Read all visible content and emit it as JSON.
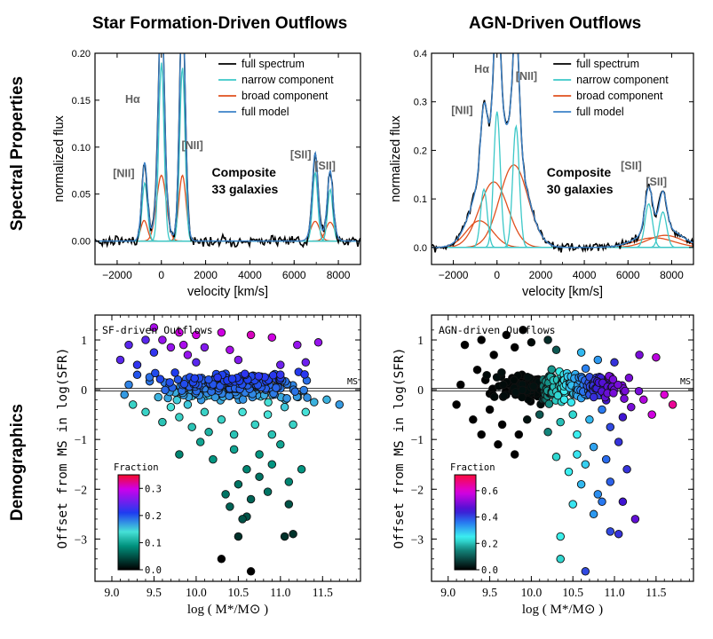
{
  "columns": {
    "left_title": "Star Formation-Driven  Outflows",
    "right_title": "AGN-Driven  Outflows"
  },
  "rows": {
    "top_label": "Spectral Properties",
    "bottom_label": "Demographics"
  },
  "colors": {
    "full_spectrum": "#000000",
    "narrow_component": "#3cc8c8",
    "broad_component": "#e0501e",
    "full_model": "#3c82c8",
    "line_label": "#606060"
  },
  "chart_data": [
    {
      "id": "sf_spectrum",
      "type": "line",
      "xlabel": "velocity [km/s]",
      "ylabel": "normalized flux",
      "xlim": [
        -3000,
        9000
      ],
      "ylim": [
        -0.025,
        0.2
      ],
      "xticks": [
        -2000,
        0,
        2000,
        4000,
        6000,
        8000
      ],
      "yticks": [
        0.0,
        0.05,
        0.1,
        0.15,
        0.2
      ],
      "ytick_labels": [
        "0.00",
        "0.05",
        "0.10",
        "0.15",
        "0.20"
      ],
      "legend": [
        "full spectrum",
        "narrow component",
        "broad component",
        "full model"
      ],
      "legend_position": "top-right",
      "annotation": [
        "Composite",
        "33 galaxies"
      ],
      "line_labels": [
        {
          "text": "Hα",
          "x": -1300,
          "y": 0.147
        },
        {
          "text": "[NII]",
          "x": -1700,
          "y": 0.068
        },
        {
          "text": "[NII]",
          "x": 1400,
          "y": 0.098
        },
        {
          "text": "[SII]",
          "x": 6300,
          "y": 0.088
        },
        {
          "text": "[SII]",
          "x": 7400,
          "y": 0.076
        }
      ],
      "narrow": [
        {
          "mu": -750,
          "amp": 0.062,
          "sigma": 120
        },
        {
          "mu": 0,
          "amp": 0.19,
          "sigma": 120
        },
        {
          "mu": 950,
          "amp": 0.185,
          "sigma": 120
        },
        {
          "mu": 6950,
          "amp": 0.073,
          "sigma": 115
        },
        {
          "mu": 7630,
          "amp": 0.055,
          "sigma": 115
        }
      ],
      "broad": [
        {
          "mu": -780,
          "amp": 0.022,
          "sigma": 150
        },
        {
          "mu": 0,
          "amp": 0.07,
          "sigma": 220
        },
        {
          "mu": 950,
          "amp": 0.07,
          "sigma": 160
        },
        {
          "mu": 6950,
          "amp": 0.021,
          "sigma": 200
        },
        {
          "mu": 7630,
          "amp": 0.02,
          "sigma": 200
        }
      ],
      "noise": 0.004
    },
    {
      "id": "agn_spectrum",
      "type": "line",
      "xlabel": "velocity [km/s]",
      "ylabel": "normalized flux",
      "xlim": [
        -3000,
        9000
      ],
      "ylim": [
        -0.035,
        0.4
      ],
      "xticks": [
        -2000,
        0,
        2000,
        4000,
        6000,
        8000
      ],
      "yticks": [
        0.0,
        0.1,
        0.2,
        0.3,
        0.4
      ],
      "ytick_labels": [
        "0.0",
        "0.1",
        "0.2",
        "0.3",
        "0.4"
      ],
      "legend": [
        "full spectrum",
        "narrow component",
        "broad component",
        "full model"
      ],
      "legend_position": "top-right",
      "annotation": [
        "Composite",
        "30 galaxies"
      ],
      "line_labels": [
        {
          "text": "Hα",
          "x": -700,
          "y": 0.36
        },
        {
          "text": "[NII]",
          "x": -1600,
          "y": 0.275
        },
        {
          "text": "[NII]",
          "x": 1350,
          "y": 0.345
        },
        {
          "text": "[SII]",
          "x": 6150,
          "y": 0.161
        },
        {
          "text": "[SII]",
          "x": 7300,
          "y": 0.128
        }
      ],
      "narrow": [
        {
          "mu": -600,
          "amp": 0.12,
          "sigma": 150
        },
        {
          "mu": 0,
          "amp": 0.28,
          "sigma": 150
        },
        {
          "mu": 870,
          "amp": 0.25,
          "sigma": 150
        },
        {
          "mu": 6950,
          "amp": 0.09,
          "sigma": 170
        },
        {
          "mu": 7600,
          "amp": 0.073,
          "sigma": 170
        }
      ],
      "broad": [
        {
          "mu": -800,
          "amp": 0.055,
          "sigma": 600
        },
        {
          "mu": -150,
          "amp": 0.135,
          "sigma": 650
        },
        {
          "mu": 770,
          "amp": 0.17,
          "sigma": 650
        },
        {
          "mu": 7200,
          "amp": 0.02,
          "sigma": 900
        },
        {
          "mu": 7700,
          "amp": 0.025,
          "sigma": 800
        }
      ],
      "noise": 0.006
    },
    {
      "id": "sf_demographics",
      "type": "scatter",
      "title": "SF-driven Outflows",
      "xlabel": "log ( M*/M⊙ )",
      "ylabel": "Offset from MS in log(SFR)",
      "xlim": [
        8.8,
        11.95
      ],
      "ylim": [
        -3.85,
        1.5
      ],
      "xticks": [
        9.0,
        9.5,
        10.0,
        10.5,
        11.0,
        11.5
      ],
      "yticks": [
        -3,
        -2,
        -1,
        0,
        1
      ],
      "ms_label": "MS",
      "colorbar": {
        "label": "Fraction",
        "min": 0.0,
        "max": 0.35,
        "ticks": [
          0.0,
          0.1,
          0.2,
          0.3
        ],
        "tick_labels": [
          "0.0",
          "0.1",
          "0.2",
          "0.3"
        ]
      },
      "points": [
        [
          9.1,
          0.6,
          0.24
        ],
        [
          9.2,
          0.9,
          0.24
        ],
        [
          9.3,
          0.5,
          0.22
        ],
        [
          9.4,
          1.0,
          0.24
        ],
        [
          9.5,
          0.75,
          0.22
        ],
        [
          9.6,
          1.0,
          0.27
        ],
        [
          9.5,
          1.25,
          0.28
        ],
        [
          9.7,
          0.85,
          0.27
        ],
        [
          9.8,
          1.15,
          0.3
        ],
        [
          9.85,
          0.9,
          0.28
        ],
        [
          10.0,
          1.1,
          0.3
        ],
        [
          10.3,
          1.15,
          0.3
        ],
        [
          9.9,
          0.7,
          0.27
        ],
        [
          10.1,
          0.85,
          0.26
        ],
        [
          10.4,
          0.8,
          0.28
        ],
        [
          10.65,
          1.1,
          0.31
        ],
        [
          10.9,
          1.05,
          0.3
        ],
        [
          11.2,
          0.9,
          0.27
        ],
        [
          11.45,
          0.95,
          0.27
        ],
        [
          10.0,
          0.55,
          0.24
        ],
        [
          10.5,
          0.6,
          0.26
        ],
        [
          11.0,
          0.5,
          0.25
        ],
        [
          11.3,
          0.55,
          0.25
        ],
        [
          9.3,
          0.3,
          0.2
        ],
        [
          9.2,
          0.1,
          0.18
        ],
        [
          9.15,
          -0.1,
          0.17
        ],
        [
          9.25,
          -0.3,
          0.13
        ],
        [
          9.4,
          -0.45,
          0.13
        ],
        [
          9.55,
          -0.15,
          0.16
        ],
        [
          9.7,
          -0.35,
          0.14
        ],
        [
          9.6,
          -0.65,
          0.12
        ],
        [
          9.8,
          -0.55,
          0.13
        ],
        [
          9.9,
          -0.3,
          0.15
        ],
        [
          9.95,
          -0.75,
          0.12
        ],
        [
          10.1,
          -0.45,
          0.13
        ],
        [
          10.15,
          -0.85,
          0.11
        ],
        [
          10.3,
          -0.6,
          0.13
        ],
        [
          10.45,
          -0.9,
          0.12
        ],
        [
          10.55,
          -0.45,
          0.14
        ],
        [
          10.7,
          -0.7,
          0.13
        ],
        [
          10.85,
          -0.5,
          0.14
        ],
        [
          10.9,
          -0.9,
          0.12
        ],
        [
          11.05,
          -0.35,
          0.15
        ],
        [
          11.15,
          -0.7,
          0.13
        ],
        [
          11.3,
          -0.45,
          0.14
        ],
        [
          11.4,
          -0.25,
          0.16
        ],
        [
          11.55,
          -0.2,
          0.16
        ],
        [
          11.7,
          -0.3,
          0.17
        ],
        [
          9.8,
          -1.3,
          0.08
        ],
        [
          10.05,
          -1.05,
          0.1
        ],
        [
          10.2,
          -1.4,
          0.09
        ],
        [
          10.45,
          -1.2,
          0.1
        ],
        [
          10.6,
          -1.6,
          0.08
        ],
        [
          10.75,
          -1.3,
          0.09
        ],
        [
          10.9,
          -1.5,
          0.09
        ],
        [
          11.0,
          -1.1,
          0.1
        ],
        [
          11.1,
          -1.85,
          0.08
        ],
        [
          11.25,
          -1.6,
          0.09
        ],
        [
          10.35,
          -2.1,
          0.07
        ],
        [
          10.5,
          -1.9,
          0.07
        ],
        [
          10.65,
          -2.2,
          0.06
        ],
        [
          10.75,
          -1.75,
          0.07
        ],
        [
          10.85,
          -2.05,
          0.07
        ],
        [
          10.6,
          -2.55,
          0.05
        ],
        [
          10.4,
          -2.35,
          0.06
        ],
        [
          10.5,
          -2.95,
          0.03
        ],
        [
          11.05,
          -2.95,
          0.03
        ],
        [
          11.1,
          -2.3,
          0.05
        ],
        [
          10.3,
          -3.4,
          0.0
        ],
        [
          10.65,
          -3.65,
          0.0
        ],
        [
          11.15,
          -2.9,
          0.03
        ],
        [
          10.55,
          -2.6,
          0.05
        ]
      ],
      "cloud": {
        "x": [
          9.3,
          11.5
        ],
        "y": [
          -0.3,
          0.45
        ],
        "center": 10.2,
        "n": 300,
        "val_low": 0.12,
        "val_high": 0.22
      }
    },
    {
      "id": "agn_demographics",
      "type": "scatter",
      "title": "AGN-driven Outflows",
      "xlabel": "log ( M*/M⊙ )",
      "ylabel": "Offset from MS in log(SFR)",
      "xlim": [
        8.8,
        11.95
      ],
      "ylim": [
        -3.85,
        1.5
      ],
      "xticks": [
        9.0,
        9.5,
        10.0,
        10.5,
        11.0,
        11.5
      ],
      "yticks": [
        -3,
        -2,
        -1,
        0,
        1
      ],
      "ms_label": "MS",
      "colorbar": {
        "label": "Fraction",
        "min": 0.0,
        "max": 0.72,
        "ticks": [
          0.0,
          0.2,
          0.4,
          0.6
        ],
        "tick_labels": [
          "0.0",
          "0.2",
          "0.4",
          "0.6"
        ]
      },
      "points": [
        [
          9.2,
          0.9,
          0.0
        ],
        [
          9.4,
          1.0,
          0.0
        ],
        [
          9.55,
          0.7,
          0.0
        ],
        [
          9.7,
          1.1,
          0.0
        ],
        [
          9.8,
          0.85,
          0.0
        ],
        [
          9.9,
          1.2,
          0.0
        ],
        [
          10.0,
          0.95,
          0.01
        ],
        [
          10.2,
          1.0,
          0.05
        ],
        [
          10.3,
          0.8,
          0.1
        ],
        [
          9.35,
          0.4,
          0.0
        ],
        [
          9.15,
          0.1,
          0.0
        ],
        [
          9.1,
          -0.3,
          0.0
        ],
        [
          9.3,
          -0.6,
          0.0
        ],
        [
          9.5,
          -0.4,
          0.0
        ],
        [
          9.4,
          -0.9,
          0.0
        ],
        [
          9.65,
          -0.7,
          0.0
        ],
        [
          9.6,
          -1.1,
          0.0
        ],
        [
          9.8,
          -1.3,
          0.0
        ],
        [
          9.85,
          -0.9,
          0.0
        ],
        [
          9.95,
          -0.6,
          0.02
        ],
        [
          10.1,
          -0.5,
          0.1
        ],
        [
          10.2,
          -0.85,
          0.15
        ],
        [
          10.35,
          -0.65,
          0.2
        ],
        [
          10.5,
          -0.5,
          0.22
        ],
        [
          10.55,
          -0.9,
          0.25
        ],
        [
          10.7,
          -0.6,
          0.3
        ],
        [
          10.85,
          -0.4,
          0.36
        ],
        [
          10.95,
          -0.75,
          0.4
        ],
        [
          11.1,
          -0.55,
          0.45
        ],
        [
          11.2,
          -0.35,
          0.5
        ],
        [
          11.35,
          -0.2,
          0.55
        ],
        [
          11.45,
          -0.5,
          0.58
        ],
        [
          11.6,
          -0.1,
          0.6
        ],
        [
          11.7,
          -0.3,
          0.65
        ],
        [
          10.6,
          0.75,
          0.3
        ],
        [
          10.8,
          0.6,
          0.33
        ],
        [
          11.0,
          0.55,
          0.42
        ],
        [
          11.3,
          0.7,
          0.5
        ],
        [
          11.5,
          0.65,
          0.56
        ],
        [
          10.3,
          -1.35,
          0.22
        ],
        [
          10.55,
          -1.3,
          0.26
        ],
        [
          10.75,
          -1.15,
          0.32
        ],
        [
          10.45,
          -1.65,
          0.25
        ],
        [
          10.65,
          -1.5,
          0.28
        ],
        [
          10.9,
          -1.4,
          0.37
        ],
        [
          11.05,
          -1.05,
          0.42
        ],
        [
          11.15,
          -1.6,
          0.42
        ],
        [
          10.6,
          -1.9,
          0.3
        ],
        [
          10.8,
          -2.1,
          0.34
        ],
        [
          10.95,
          -1.85,
          0.38
        ],
        [
          10.5,
          -2.3,
          0.26
        ],
        [
          10.75,
          -2.5,
          0.33
        ],
        [
          10.85,
          -2.25,
          0.36
        ],
        [
          11.1,
          -2.25,
          0.45
        ],
        [
          11.25,
          -2.6,
          0.48
        ],
        [
          10.95,
          -2.85,
          0.4
        ],
        [
          11.05,
          -2.9,
          0.42
        ],
        [
          10.35,
          -2.95,
          0.24
        ],
        [
          10.35,
          -3.4,
          0.22
        ],
        [
          10.65,
          -3.65,
          0.4
        ]
      ],
      "cloud": {
        "x": [
          9.2,
          11.4
        ],
        "y": [
          -0.35,
          0.45
        ],
        "center": 10.3,
        "n": 320,
        "val_low": 0.0,
        "val_high": 0.5
      }
    }
  ]
}
